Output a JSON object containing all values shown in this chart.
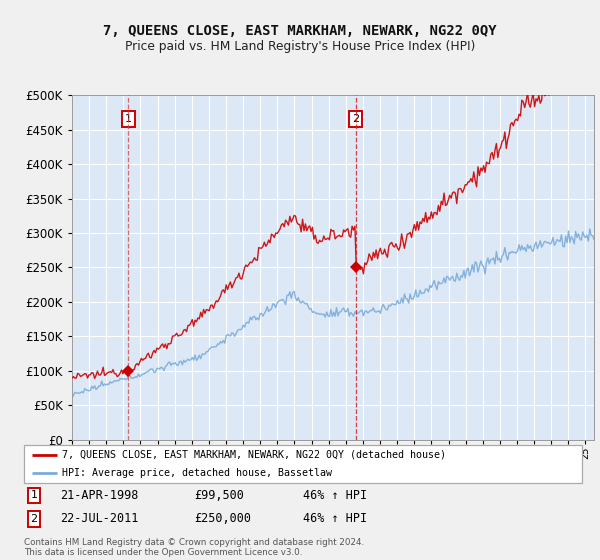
{
  "title": "7, QUEENS CLOSE, EAST MARKHAM, NEWARK, NG22 0QY",
  "subtitle": "Price paid vs. HM Land Registry's House Price Index (HPI)",
  "fig_bg_color": "#f0f0f0",
  "plot_bg_color": "#dce8f5",
  "sale1_year": 1998.3,
  "sale1_price": 99500,
  "sale2_year": 2011.58,
  "sale2_price": 250000,
  "legend_line1": "7, QUEENS CLOSE, EAST MARKHAM, NEWARK, NG22 0QY (detached house)",
  "legend_line2": "HPI: Average price, detached house, Bassetlaw",
  "footer": "Contains HM Land Registry data © Crown copyright and database right 2024.\nThis data is licensed under the Open Government Licence v3.0.",
  "ylim_max": 500000,
  "xlim_start": 1995.0,
  "xlim_end": 2025.5,
  "red_color": "#cc0000",
  "blue_color": "#7aabdb",
  "vline1_color": "#cc6666",
  "vline2_color": "#cc3333",
  "grid_color": "#c0cfe0"
}
